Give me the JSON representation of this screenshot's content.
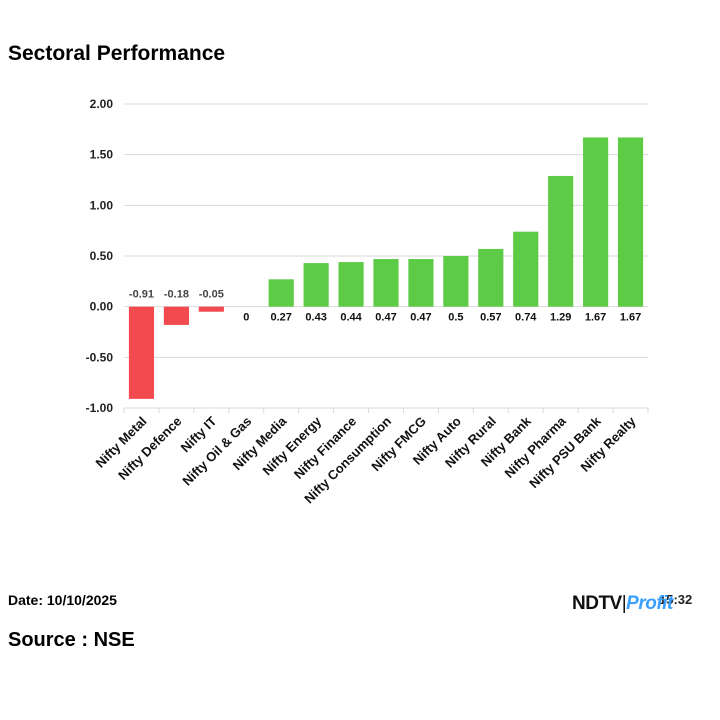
{
  "title": "Sectoral Performance",
  "footer": {
    "date": "Date: 10/10/2025",
    "source": "Source : NSE",
    "logo_ndtv": "NDTV",
    "logo_sep": "|",
    "logo_profit": "Profit",
    "time_fragment": "15:32"
  },
  "colors": {
    "positive": "#5dcb45",
    "negative": "#f24a4f",
    "grid": "#d9d9d9"
  },
  "chart_data": {
    "type": "bar",
    "title": "Sectoral Performance",
    "categories": [
      "Nifty Metal",
      "Nifty Defence",
      "Nifty IT",
      "Nifty Oil & Gas",
      "Nifty Media",
      "Nifty Energy",
      "Nifty Finance",
      "Nifty Consumption",
      "Nifty FMCG",
      "Nifty Auto",
      "Nifty Rural",
      "Nifty Bank",
      "Nifty Pharma",
      "Nifty PSU Bank",
      "Nifty Realty"
    ],
    "values": [
      -0.91,
      -0.18,
      -0.05,
      0,
      0.27,
      0.43,
      0.44,
      0.47,
      0.47,
      0.5,
      0.57,
      0.74,
      1.29,
      1.67,
      1.67
    ],
    "labels": [
      "-0.91",
      "-0.18",
      "-0.05",
      "0",
      "0.27",
      "0.43",
      "0.44",
      "0.47",
      "0.47",
      "0.5",
      "0.57",
      "0.74",
      "1.29",
      "1.67",
      "1.67"
    ],
    "yticks": [
      "2.00",
      "1.50",
      "1.00",
      "0.50",
      "0.00",
      "-0.50",
      "-1.00"
    ],
    "ylim": [
      -1,
      2
    ],
    "grid": true,
    "legend": "none"
  }
}
